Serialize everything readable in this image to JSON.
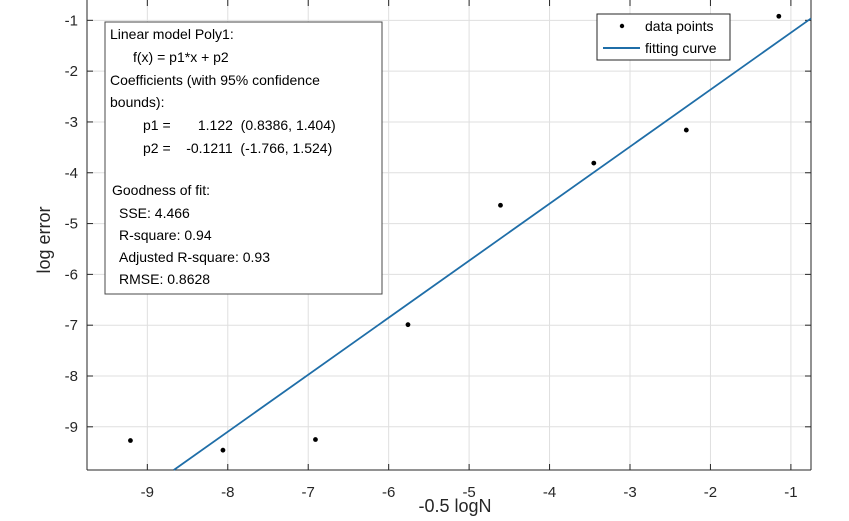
{
  "chart_data": {
    "type": "scatter",
    "xlabel": "-0.5 logN",
    "ylabel": "log error",
    "xlim": [
      -9.75,
      -0.75
    ],
    "ylim": [
      -9.85,
      -0.6
    ],
    "xticks": [
      -9,
      -8,
      -7,
      -6,
      -5,
      -4,
      -3,
      -2,
      -1
    ],
    "yticks": [
      -9,
      -8,
      -7,
      -6,
      -5,
      -4,
      -3,
      -2,
      -1
    ],
    "xtick_labels": [
      "-9",
      "-8",
      "-7",
      "-6",
      "-5",
      "-4",
      "-3",
      "-2",
      "-1"
    ],
    "ytick_labels": [
      "-9",
      "-8",
      "-7",
      "-6",
      "-5",
      "-4",
      "-3",
      "-2",
      "-1"
    ],
    "grid": true,
    "legend": "top-right",
    "series": [
      {
        "name": "data points",
        "kind": "points",
        "color": "#000000",
        "x": [
          -9.21,
          -8.06,
          -6.91,
          -5.76,
          -4.61,
          -3.45,
          -2.3,
          -1.15
        ],
        "y": [
          -9.27,
          -9.46,
          -9.25,
          -6.99,
          -4.64,
          -3.81,
          -3.16,
          -0.92
        ]
      },
      {
        "name": "fitting curve",
        "kind": "line",
        "color": "#1f6ea8",
        "slope": 1.122,
        "intercept": -0.1211
      }
    ],
    "annotation": {
      "lines": [
        "Linear model Poly1:",
        "f(x) = p1*x + p2",
        "Coefficients (with 95% confidence",
        "bounds):",
        "p1 =       1.122  (0.8386, 1.404)",
        "p2 =    -0.1211  (-1.766, 1.524)",
        "",
        "Goodness of fit:",
        "SSE: 4.466",
        "R-square: 0.94",
        "Adjusted R-square: 0.93",
        "RMSE: 0.8628"
      ]
    }
  }
}
